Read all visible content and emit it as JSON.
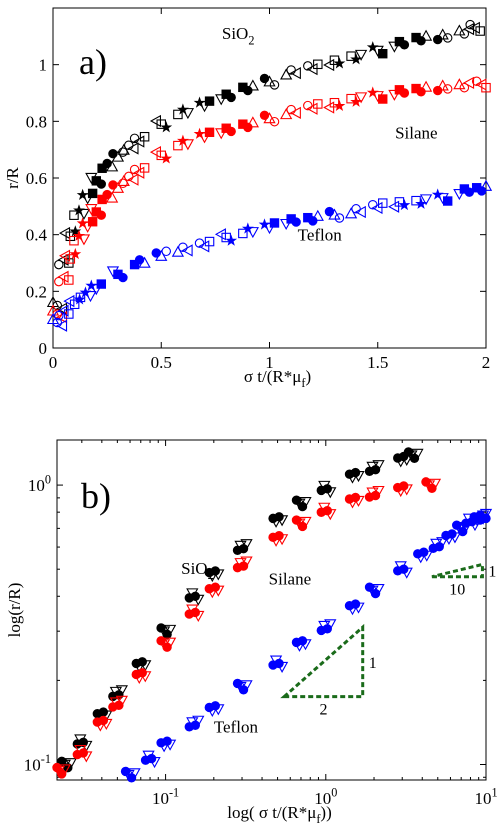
{
  "colors": {
    "sio2": "#000000",
    "silane": "#ff0000",
    "teflon": "#0000ff",
    "slope_guide": "#1a6b1a"
  },
  "chart_data": [
    {
      "type": "scatter",
      "panel_label": "a)",
      "xlabel": "σ t/(R*μ",
      "xlabel_sub": "f",
      "xlabel_close": ")",
      "ylabel": "r/R",
      "xlim": [
        0,
        2
      ],
      "ylim": [
        0,
        1.2
      ],
      "x_ticks": [
        0,
        0.5,
        1,
        1.5,
        2
      ],
      "x_tick_labels": [
        "0",
        "0.5",
        "1",
        "1.5",
        "2"
      ],
      "y_ticks": [
        0,
        0.2,
        0.4,
        0.6,
        0.8,
        1
      ],
      "y_tick_labels": [
        "0",
        "0.2",
        "0.4",
        "0.6",
        "0.8",
        "1"
      ],
      "grid": false,
      "annotations": [
        {
          "text": "SiO",
          "sub": "2",
          "x": 0.78,
          "y": 1.09,
          "series": "sio2"
        },
        {
          "text": "Silane",
          "x": 1.58,
          "y": 0.74,
          "series": "silane"
        },
        {
          "text": "Teflon",
          "x": 1.13,
          "y": 0.38,
          "series": "teflon"
        }
      ],
      "series": [
        {
          "key": "sio2",
          "color": "#000000",
          "x": [
            0.02,
            0.05,
            0.08,
            0.12,
            0.16,
            0.2,
            0.25,
            0.3,
            0.35,
            0.4,
            0.5,
            0.6,
            0.7,
            0.8,
            0.9,
            1.0,
            1.1,
            1.2,
            1.3,
            1.4,
            1.5,
            1.6,
            1.7,
            1.8,
            1.9,
            1.95
          ],
          "y": [
            0.15,
            0.3,
            0.4,
            0.48,
            0.54,
            0.59,
            0.64,
            0.68,
            0.71,
            0.74,
            0.79,
            0.83,
            0.86,
            0.89,
            0.92,
            0.94,
            0.97,
            0.99,
            1.01,
            1.03,
            1.05,
            1.07,
            1.09,
            1.1,
            1.12,
            1.13
          ]
        },
        {
          "key": "silane",
          "color": "#ff0000",
          "x": [
            0.02,
            0.05,
            0.08,
            0.12,
            0.16,
            0.2,
            0.25,
            0.3,
            0.35,
            0.4,
            0.5,
            0.6,
            0.7,
            0.8,
            0.9,
            1.0,
            1.1,
            1.2,
            1.3,
            1.4,
            1.5,
            1.6,
            1.7,
            1.8,
            1.9,
            1.98
          ],
          "y": [
            0.12,
            0.24,
            0.32,
            0.39,
            0.44,
            0.48,
            0.53,
            0.57,
            0.6,
            0.63,
            0.68,
            0.72,
            0.75,
            0.77,
            0.79,
            0.81,
            0.83,
            0.85,
            0.86,
            0.88,
            0.89,
            0.9,
            0.91,
            0.92,
            0.93,
            0.93
          ]
        },
        {
          "key": "teflon",
          "color": "#0000ff",
          "x": [
            0.02,
            0.05,
            0.1,
            0.15,
            0.2,
            0.3,
            0.4,
            0.5,
            0.6,
            0.7,
            0.8,
            0.9,
            1.0,
            1.1,
            1.2,
            1.3,
            1.4,
            1.5,
            1.6,
            1.7,
            1.8,
            1.9,
            1.98
          ],
          "y": [
            0.09,
            0.12,
            0.16,
            0.19,
            0.22,
            0.26,
            0.3,
            0.33,
            0.35,
            0.37,
            0.39,
            0.41,
            0.43,
            0.45,
            0.46,
            0.47,
            0.48,
            0.5,
            0.51,
            0.52,
            0.53,
            0.55,
            0.56
          ]
        }
      ]
    },
    {
      "type": "scatter",
      "scale": "log-log",
      "panel_label": "b)",
      "xlabel": "log( σ t/(R*μ",
      "xlabel_sub": "f",
      "xlabel_close": "))",
      "ylabel": "log(r/R)",
      "xlim": [
        0.021,
        10
      ],
      "ylim": [
        0.088,
        1.45
      ],
      "x_ticks": [
        0.1,
        1,
        10
      ],
      "x_tick_labels": [
        {
          "base": "10",
          "exp": "-1"
        },
        {
          "base": "10",
          "exp": "0"
        },
        {
          "base": "10",
          "exp": "1"
        }
      ],
      "y_ticks": [
        0.1,
        1
      ],
      "y_tick_labels": [
        {
          "base": "10",
          "exp": "-1"
        },
        {
          "base": "10",
          "exp": "0"
        }
      ],
      "grid": false,
      "annotations": [
        {
          "text": "SiO",
          "sub": "2",
          "x": 0.125,
          "y": 0.48,
          "series": "sio2"
        },
        {
          "text": "Silane",
          "x": 0.44,
          "y": 0.44,
          "series": "silane"
        },
        {
          "text": "Teflon",
          "x": 0.2,
          "y": 0.13,
          "series": "teflon"
        }
      ],
      "slope_guides": [
        {
          "rise": "1",
          "run": "10",
          "x": [
            4.6,
            9.5
          ],
          "y": [
            0.47,
            0.52
          ]
        },
        {
          "rise": "1",
          "run": "2",
          "x": [
            0.55,
            1.7
          ],
          "y": [
            0.175,
            0.31
          ]
        }
      ],
      "series": [
        {
          "key": "sio2",
          "color": "#000000",
          "x": [
            0.024,
            0.03,
            0.04,
            0.05,
            0.07,
            0.1,
            0.15,
            0.2,
            0.3,
            0.5,
            0.7,
            1.0,
            1.5,
            2.0,
            3.0,
            3.5
          ],
          "y": [
            0.1,
            0.12,
            0.15,
            0.18,
            0.23,
            0.3,
            0.4,
            0.48,
            0.6,
            0.76,
            0.86,
            0.97,
            1.08,
            1.15,
            1.25,
            1.28
          ]
        },
        {
          "key": "silane",
          "color": "#ff0000",
          "x": [
            0.022,
            0.03,
            0.04,
            0.05,
            0.07,
            0.1,
            0.15,
            0.2,
            0.3,
            0.5,
            0.7,
            1.0,
            1.5,
            2.0,
            3.0,
            4.5
          ],
          "y": [
            0.095,
            0.11,
            0.14,
            0.165,
            0.21,
            0.27,
            0.35,
            0.42,
            0.52,
            0.65,
            0.73,
            0.81,
            0.88,
            0.93,
            0.98,
            1.0
          ]
        },
        {
          "key": "teflon",
          "color": "#0000ff",
          "x": [
            0.06,
            0.08,
            0.1,
            0.15,
            0.2,
            0.3,
            0.5,
            0.7,
            1.0,
            1.5,
            2.0,
            3.0,
            4.0,
            5.0,
            6.0,
            7.0,
            8.0,
            9.0,
            9.8
          ],
          "y": [
            0.092,
            0.105,
            0.118,
            0.14,
            0.16,
            0.19,
            0.23,
            0.27,
            0.31,
            0.37,
            0.42,
            0.5,
            0.56,
            0.61,
            0.66,
            0.7,
            0.74,
            0.76,
            0.77
          ]
        }
      ]
    }
  ]
}
